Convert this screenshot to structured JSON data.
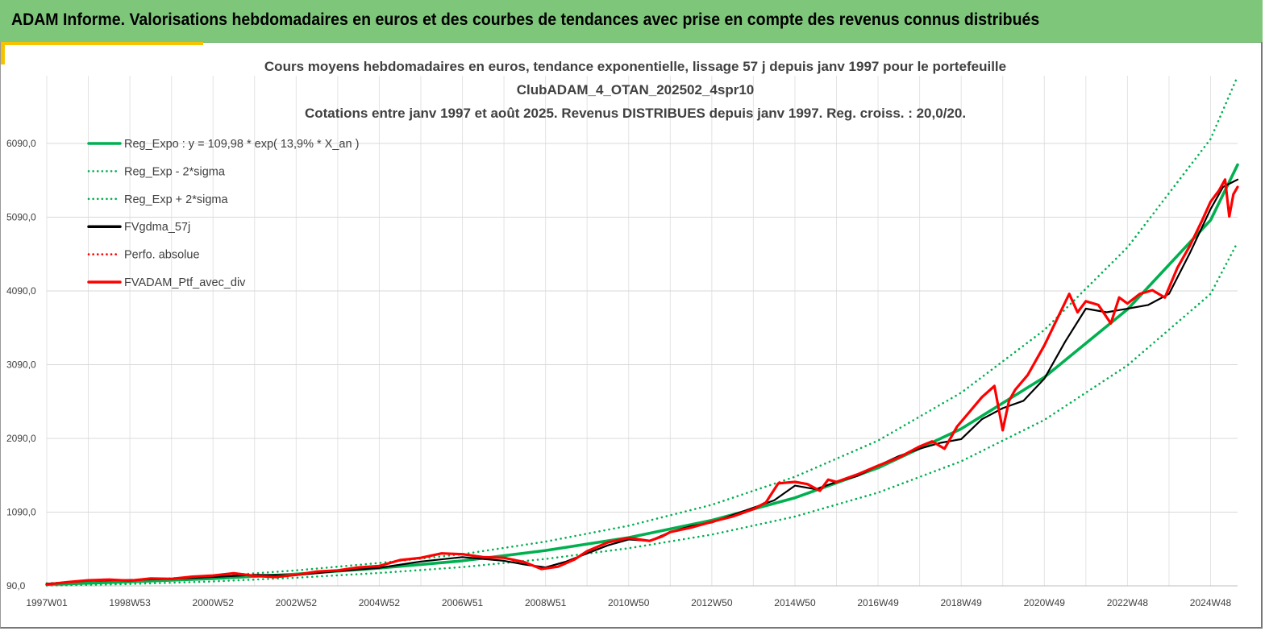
{
  "banner": {
    "title": "ADAM Informe. Valorisations hebdomadaires en euros et des courbes de tendances avec prise en compte des revenus connus distribués"
  },
  "colors": {
    "banner": "#7dc67a",
    "trend": "#00b050",
    "smoothed": "#000000",
    "portfolio": "#ff0000",
    "grid": "#d9d9d9",
    "accent": "#f5c400"
  },
  "chart_data": {
    "type": "line",
    "title_lines": [
      "Cours moyens hebdomadaires  en euros, tendance exponentielle, lissage 57 j depuis janv 1997 pour le portefeuille",
      "ClubADAM_4_OTAN_202502_4spr10",
      "Cotations  entre janv 1997 et août 2025. Revenus DISTRIBUES depuis janv 1997. Reg. croiss. : 20,0/20."
    ],
    "x_tick_labels": [
      "1997W01",
      "1998W53",
      "2000W52",
      "2002W52",
      "2004W52",
      "2006W51",
      "2008W51",
      "2010W50",
      "2012W50",
      "2014W50",
      "2016W49",
      "2018W49",
      "2020W49",
      "2022W48",
      "2024W48"
    ],
    "x_tick_years": [
      1997.0,
      1999.0,
      2001.0,
      2003.0,
      2005.0,
      2007.0,
      2009.0,
      2011.0,
      2013.0,
      2015.0,
      2017.0,
      2019.0,
      2021.0,
      2023.0,
      2025.0
    ],
    "xlim": [
      1997.0,
      2025.65
    ],
    "y_tick_labels": [
      "90,0",
      "1090,0",
      "2090,0",
      "3090,0",
      "4090,0",
      "5090,0",
      "6090,0"
    ],
    "y_ticks": [
      90,
      1090,
      2090,
      3090,
      4090,
      5090,
      6090
    ],
    "ylim": [
      90,
      7000
    ],
    "grid": true,
    "legend_position": "top-left",
    "legend": [
      {
        "label": "Reg_Expo : y = 109,98 * exp( 13,9% *  X_an )",
        "color": "#00b050",
        "style": "solid"
      },
      {
        "label": "Reg_Exp - 2*sigma",
        "color": "#00b050",
        "style": "dotted"
      },
      {
        "label": "Reg_Exp + 2*sigma",
        "color": "#00b050",
        "style": "dotted"
      },
      {
        "label": "FVgdma_57j",
        "color": "#000000",
        "style": "solid"
      },
      {
        "label": "Perfo. absolue",
        "color": "#ff0000",
        "style": "dotted"
      },
      {
        "label": "FVADAM_Ptf_avec_div",
        "color": "#ff0000",
        "style": "solid"
      }
    ],
    "series": [
      {
        "name": "Reg_Expo : y = 109,98 * exp( 13,9% *  X_an )",
        "x": [
          1997.0,
          1999.0,
          2001.0,
          2003.0,
          2005.0,
          2007.0,
          2009.0,
          2011.0,
          2013.0,
          2015.0,
          2017.0,
          2019.0,
          2021.0,
          2023.0,
          2025.0,
          2025.65
        ],
        "y": [
          110,
          145,
          190,
          250,
          330,
          430,
          570,
          745,
          980,
          1285,
          1690,
          2220,
          2920,
          3840,
          5050,
          5800
        ]
      },
      {
        "name": "Reg_Exp - 2*sigma",
        "x": [
          1997.0,
          1999.0,
          2001.0,
          2003.0,
          2005.0,
          2007.0,
          2009.0,
          2011.0,
          2013.0,
          2015.0,
          2017.0,
          2019.0,
          2021.0,
          2023.0,
          2025.0,
          2025.65
        ],
        "y": [
          95,
          115,
          150,
          200,
          265,
          345,
          455,
          600,
          785,
          1030,
          1355,
          1780,
          2340,
          3080,
          4050,
          4750
        ]
      },
      {
        "name": "Reg_Exp + 2*sigma",
        "x": [
          1997.0,
          1999.0,
          2001.0,
          2003.0,
          2005.0,
          2007.0,
          2009.0,
          2011.0,
          2013.0,
          2015.0,
          2017.0,
          2019.0,
          2021.0,
          2023.0,
          2025.0,
          2025.65
        ],
        "y": [
          125,
          165,
          220,
          300,
          400,
          520,
          690,
          905,
          1190,
          1570,
          2060,
          2710,
          3560,
          4680,
          6150,
          7000
        ]
      },
      {
        "name": "FVgdma_57j",
        "x": [
          1997.0,
          1998.0,
          1999.0,
          2000.0,
          2001.0,
          2002.0,
          2003.0,
          2004.0,
          2005.0,
          2006.0,
          2007.0,
          2008.0,
          2008.5,
          2009.0,
          2009.5,
          2010.0,
          2010.5,
          2011.0,
          2011.5,
          2012.0,
          2012.5,
          2013.0,
          2013.5,
          2014.0,
          2014.5,
          2015.0,
          2015.5,
          2016.0,
          2016.5,
          2017.0,
          2017.5,
          2018.0,
          2018.5,
          2019.0,
          2019.5,
          2020.0,
          2020.5,
          2021.0,
          2021.5,
          2022.0,
          2022.5,
          2023.0,
          2023.5,
          2024.0,
          2024.5,
          2025.0,
          2025.3,
          2025.65
        ],
        "y": [
          120,
          160,
          170,
          185,
          210,
          240,
          235,
          290,
          335,
          420,
          480,
          430,
          380,
          340,
          420,
          530,
          640,
          720,
          700,
          820,
          900,
          950,
          1050,
          1150,
          1250,
          1450,
          1400,
          1500,
          1580,
          1720,
          1850,
          1950,
          2030,
          2080,
          2350,
          2500,
          2600,
          2900,
          3400,
          3850,
          3800,
          3850,
          3900,
          4050,
          4600,
          5200,
          5500,
          5600
        ]
      },
      {
        "name": "FVADAM_Ptf_avec_div",
        "x": [
          1997.0,
          1997.5,
          1998.0,
          1998.5,
          1999.0,
          1999.5,
          2000.0,
          2000.5,
          2001.0,
          2001.5,
          2002.0,
          2002.5,
          2003.0,
          2003.5,
          2004.0,
          2004.5,
          2005.0,
          2005.5,
          2006.0,
          2006.5,
          2007.0,
          2007.5,
          2008.0,
          2008.5,
          2008.9,
          2009.3,
          2009.7,
          2010.0,
          2010.5,
          2011.0,
          2011.5,
          2011.8,
          2012.0,
          2012.5,
          2013.0,
          2013.5,
          2014.0,
          2014.3,
          2014.6,
          2015.0,
          2015.3,
          2015.6,
          2015.8,
          2016.0,
          2016.5,
          2017.0,
          2017.5,
          2018.0,
          2018.3,
          2018.6,
          2018.9,
          2019.2,
          2019.5,
          2019.8,
          2020.0,
          2020.15,
          2020.3,
          2020.6,
          2021.0,
          2021.3,
          2021.6,
          2021.8,
          2022.0,
          2022.3,
          2022.6,
          2022.8,
          2023.0,
          2023.3,
          2023.6,
          2023.9,
          2024.2,
          2024.5,
          2024.8,
          2025.0,
          2025.2,
          2025.35,
          2025.45,
          2025.55,
          2025.65
        ],
        "y": [
          110,
          140,
          165,
          175,
          160,
          190,
          185,
          215,
          230,
          260,
          225,
          210,
          240,
          285,
          300,
          340,
          360,
          440,
          470,
          530,
          520,
          480,
          470,
          410,
          320,
          350,
          450,
          560,
          680,
          740,
          700,
          760,
          820,
          880,
          960,
          1030,
          1130,
          1220,
          1480,
          1500,
          1470,
          1380,
          1530,
          1500,
          1600,
          1720,
          1830,
          1980,
          2050,
          1950,
          2250,
          2450,
          2650,
          2800,
          2200,
          2600,
          2750,
          2950,
          3350,
          3700,
          4050,
          3800,
          3950,
          3900,
          3650,
          4000,
          3920,
          4050,
          4100,
          4000,
          4400,
          4700,
          5050,
          5300,
          5450,
          5600,
          5100,
          5400,
          5500
        ]
      }
    ]
  }
}
